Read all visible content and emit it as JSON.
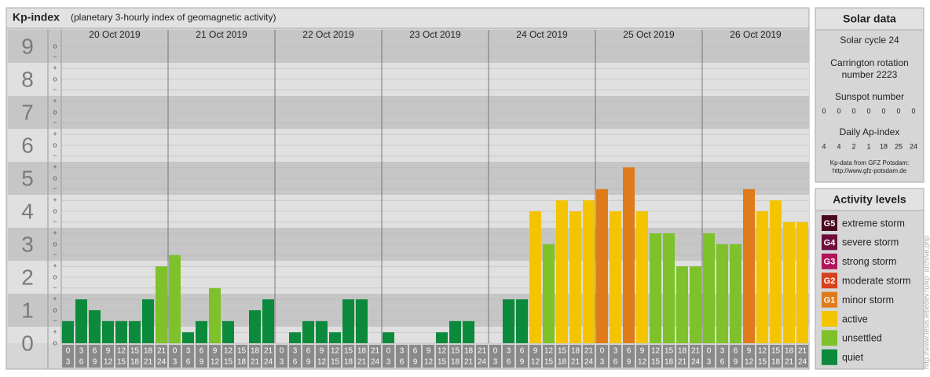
{
  "chart_data": {
    "type": "bar",
    "title": "Kp-index",
    "subtitle": "(planetary 3-hourly index of geomagnetic activity)",
    "ylim": [
      0,
      9.5
    ],
    "yticks": [
      0,
      1,
      2,
      3,
      4,
      5,
      6,
      7,
      8,
      9
    ],
    "minor_ticks": [
      {
        "value": 0,
        "label": "o"
      },
      {
        "value": 0.33,
        "label": "+"
      },
      {
        "value": 0.67,
        "label": "−"
      },
      {
        "value": 1,
        "label": "o"
      },
      {
        "value": 1.33,
        "label": "+"
      },
      {
        "value": 1.67,
        "label": "−"
      },
      {
        "value": 2,
        "label": "o"
      },
      {
        "value": 2.33,
        "label": "+"
      },
      {
        "value": 2.67,
        "label": "−"
      },
      {
        "value": 3,
        "label": "o"
      },
      {
        "value": 3.33,
        "label": "+"
      },
      {
        "value": 3.67,
        "label": "−"
      },
      {
        "value": 4,
        "label": "o"
      },
      {
        "value": 4.33,
        "label": "+"
      },
      {
        "value": 4.67,
        "label": "−"
      },
      {
        "value": 5,
        "label": "o"
      },
      {
        "value": 5.33,
        "label": "+"
      },
      {
        "value": 5.67,
        "label": "−"
      },
      {
        "value": 6,
        "label": "o"
      },
      {
        "value": 6.33,
        "label": "+"
      },
      {
        "value": 6.67,
        "label": "−"
      },
      {
        "value": 7,
        "label": "o"
      },
      {
        "value": 7.33,
        "label": "+"
      },
      {
        "value": 7.67,
        "label": "−"
      },
      {
        "value": 8,
        "label": "o"
      },
      {
        "value": 8.33,
        "label": "+"
      },
      {
        "value": 8.67,
        "label": "−"
      },
      {
        "value": 9,
        "label": "o"
      }
    ],
    "slot_starts": [
      0,
      3,
      6,
      9,
      12,
      15,
      18,
      21
    ],
    "slot_ends": [
      3,
      6,
      9,
      12,
      15,
      18,
      21,
      24
    ],
    "days": [
      {
        "date": "20 Oct 2019",
        "values": [
          0.67,
          1.33,
          1,
          0.67,
          0.67,
          0.67,
          1.33,
          2.33
        ],
        "colors": [
          "#0b8a3c",
          "#0b8a3c",
          "#0b8a3c",
          "#0b8a3c",
          "#0b8a3c",
          "#0b8a3c",
          "#0b8a3c",
          "#7dc22a"
        ]
      },
      {
        "date": "21 Oct 2019",
        "values": [
          2.67,
          0.33,
          0.67,
          1.67,
          0.67,
          0,
          1,
          1.33
        ],
        "colors": [
          "#7dc22a",
          "#0b8a3c",
          "#0b8a3c",
          "#7dc22a",
          "#0b8a3c",
          "#0b8a3c",
          "#0b8a3c",
          "#0b8a3c"
        ]
      },
      {
        "date": "22 Oct 2019",
        "values": [
          0,
          0.33,
          0.67,
          0.67,
          0.33,
          1.33,
          1.33,
          0
        ],
        "colors": [
          "#0b8a3c",
          "#0b8a3c",
          "#0b8a3c",
          "#0b8a3c",
          "#0b8a3c",
          "#0b8a3c",
          "#0b8a3c",
          "#0b8a3c"
        ]
      },
      {
        "date": "23 Oct 2019",
        "values": [
          0.33,
          0,
          0,
          0,
          0.33,
          0.67,
          0.67,
          0
        ],
        "colors": [
          "#0b8a3c",
          "#0b8a3c",
          "#0b8a3c",
          "#0b8a3c",
          "#0b8a3c",
          "#0b8a3c",
          "#0b8a3c",
          "#0b8a3c"
        ]
      },
      {
        "date": "24 Oct 2019",
        "values": [
          0,
          1.33,
          1.33,
          4,
          3,
          4.33,
          4,
          4.33
        ],
        "colors": [
          "#0b8a3c",
          "#0b8a3c",
          "#0b8a3c",
          "#f5c400",
          "#7dc22a",
          "#f5c400",
          "#f5c400",
          "#f5c400"
        ]
      },
      {
        "date": "25 Oct 2019",
        "values": [
          4.67,
          4,
          5.33,
          4,
          3.33,
          3.33,
          2.33,
          2.33
        ],
        "colors": [
          "#e07b1a",
          "#f5c400",
          "#e07b1a",
          "#f5c400",
          "#7dc22a",
          "#7dc22a",
          "#7dc22a",
          "#7dc22a"
        ]
      },
      {
        "date": "26 Oct 2019",
        "values": [
          3.33,
          3,
          3,
          4.67,
          4,
          4.33,
          3.67,
          3.67
        ],
        "colors": [
          "#7dc22a",
          "#7dc22a",
          "#7dc22a",
          "#e07b1a",
          "#f5c400",
          "#f5c400",
          "#f5c400",
          "#f5c400"
        ]
      }
    ]
  },
  "solar": {
    "title": "Solar data",
    "cycle": "Solar cycle 24",
    "carrington": [
      "Carrington rotation",
      "number 2223"
    ],
    "sunspot_label": "Sunspot number",
    "sunspots": [
      0,
      0,
      0,
      0,
      0,
      0,
      0
    ],
    "ap_label": "Daily Ap-index",
    "ap": [
      4,
      4,
      2,
      1,
      18,
      25,
      24
    ],
    "source": "Kp-data from GFZ Potsdam:",
    "source_url": "http://www.gfz-potsdam.de"
  },
  "activity": {
    "title": "Activity levels",
    "levels": [
      {
        "code": "G5",
        "name": "extreme storm",
        "color": "#4a0a1e"
      },
      {
        "code": "G4",
        "name": "severe storm",
        "color": "#6e0c3c"
      },
      {
        "code": "G3",
        "name": "strong storm",
        "color": "#b0145a"
      },
      {
        "code": "G2",
        "name": "moderate storm",
        "color": "#d9401e"
      },
      {
        "code": "G1",
        "name": "minor storm",
        "color": "#e07b1a"
      },
      {
        "name": "active",
        "color": "#f5c400"
      },
      {
        "name": "unsettled",
        "color": "#7dc22a"
      },
      {
        "name": "quiet",
        "color": "#0b8a3c"
      }
    ]
  },
  "side_url": "http://www.tesis.lebedev.ru/kp_archive.php"
}
